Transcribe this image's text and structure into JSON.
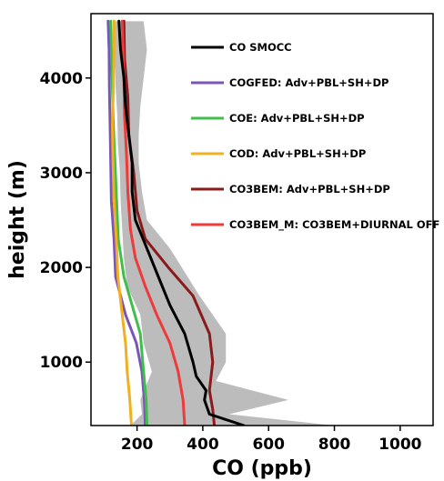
{
  "chart_data": {
    "type": "line",
    "title": "",
    "xlabel": "CO (ppb)",
    "ylabel": "height (m)",
    "xlim": [
      60,
      1100
    ],
    "ylim": [
      330,
      4680
    ],
    "xticks": [
      200,
      400,
      600,
      800,
      1000
    ],
    "yticks": [
      1000,
      2000,
      3000,
      4000
    ],
    "grid": false,
    "legend_position": "top-right",
    "colors": {
      "band": "#bcbcbc",
      "CO SMOCC": "#000000",
      "COGFED": "#7b55b8",
      "COE": "#3fbe4a",
      "COD": "#f0b020",
      "CO3BEM": "#8b1a1a",
      "CO3BEM_M": "#ee3a3a"
    },
    "band": {
      "name": "",
      "lower": [
        [
          180,
          330
        ],
        [
          215,
          450
        ],
        [
          210,
          600
        ],
        [
          245,
          900
        ],
        [
          220,
          1200
        ],
        [
          210,
          1500
        ],
        [
          170,
          1800
        ],
        [
          160,
          2100
        ],
        [
          155,
          2400
        ],
        [
          150,
          2700
        ],
        [
          148,
          3000
        ],
        [
          142,
          3300
        ],
        [
          140,
          3600
        ],
        [
          135,
          3900
        ],
        [
          133,
          4200
        ],
        [
          133,
          4600
        ]
      ],
      "upper": [
        [
          800,
          330
        ],
        [
          480,
          450
        ],
        [
          660,
          600
        ],
        [
          440,
          800
        ],
        [
          470,
          1000
        ],
        [
          470,
          1300
        ],
        [
          390,
          1700
        ],
        [
          300,
          2200
        ],
        [
          230,
          2500
        ],
        [
          215,
          2800
        ],
        [
          205,
          3100
        ],
        [
          205,
          3400
        ],
        [
          210,
          3700
        ],
        [
          220,
          4000
        ],
        [
          230,
          4300
        ],
        [
          220,
          4600
        ]
      ]
    },
    "series": [
      {
        "name": "CO SMOCC",
        "points": [
          [
            525,
            330
          ],
          [
            420,
            450
          ],
          [
            405,
            600
          ],
          [
            410,
            700
          ],
          [
            380,
            850
          ],
          [
            370,
            1000
          ],
          [
            345,
            1300
          ],
          [
            300,
            1600
          ],
          [
            265,
            1900
          ],
          [
            230,
            2200
          ],
          [
            195,
            2500
          ],
          [
            185,
            2800
          ],
          [
            185,
            3100
          ],
          [
            175,
            3400
          ],
          [
            165,
            3700
          ],
          [
            160,
            4000
          ],
          [
            150,
            4300
          ],
          [
            145,
            4600
          ]
        ]
      },
      {
        "name": "COGFED: Adv+PBL+SH+DP",
        "points": [
          [
            225,
            330
          ],
          [
            222,
            600
          ],
          [
            215,
            900
          ],
          [
            198,
            1200
          ],
          [
            165,
            1500
          ],
          [
            135,
            1900
          ],
          [
            130,
            2300
          ],
          [
            122,
            2700
          ],
          [
            120,
            3100
          ],
          [
            118,
            3500
          ],
          [
            116,
            3900
          ],
          [
            115,
            4300
          ],
          [
            112,
            4600
          ]
        ]
      },
      {
        "name": "COE: Adv+PBL+SH+DP",
        "points": [
          [
            230,
            330
          ],
          [
            228,
            600
          ],
          [
            220,
            900
          ],
          [
            210,
            1300
          ],
          [
            185,
            1600
          ],
          [
            160,
            1900
          ],
          [
            143,
            2300
          ],
          [
            138,
            2700
          ],
          [
            133,
            3100
          ],
          [
            128,
            3500
          ],
          [
            125,
            3900
          ],
          [
            122,
            4300
          ],
          [
            120,
            4600
          ]
        ]
      },
      {
        "name": "COD: Adv+PBL+SH+DP",
        "points": [
          [
            183,
            330
          ],
          [
            178,
            600
          ],
          [
            170,
            900
          ],
          [
            165,
            1200
          ],
          [
            155,
            1500
          ],
          [
            142,
            1900
          ],
          [
            137,
            2300
          ],
          [
            130,
            2700
          ],
          [
            127,
            3100
          ],
          [
            125,
            3500
          ],
          [
            128,
            3900
          ],
          [
            130,
            4300
          ],
          [
            130,
            4600
          ]
        ]
      },
      {
        "name": "CO3BEM: Adv+PBL+SH+DP",
        "points": [
          [
            435,
            330
          ],
          [
            430,
            500
          ],
          [
            420,
            700
          ],
          [
            430,
            1000
          ],
          [
            420,
            1300
          ],
          [
            370,
            1700
          ],
          [
            295,
            2000
          ],
          [
            225,
            2300
          ],
          [
            200,
            2600
          ],
          [
            190,
            3000
          ],
          [
            175,
            3400
          ],
          [
            172,
            3800
          ],
          [
            162,
            4200
          ],
          [
            160,
            4600
          ]
        ]
      },
      {
        "name": "CO3BEM_M: CO3BEM+DIURNAL OFF",
        "points": [
          [
            345,
            330
          ],
          [
            340,
            600
          ],
          [
            325,
            900
          ],
          [
            300,
            1200
          ],
          [
            260,
            1500
          ],
          [
            225,
            1800
          ],
          [
            195,
            2100
          ],
          [
            180,
            2400
          ],
          [
            172,
            2800
          ],
          [
            168,
            3200
          ],
          [
            162,
            3600
          ],
          [
            160,
            4000
          ],
          [
            158,
            4300
          ],
          [
            155,
            4600
          ]
        ]
      }
    ]
  }
}
